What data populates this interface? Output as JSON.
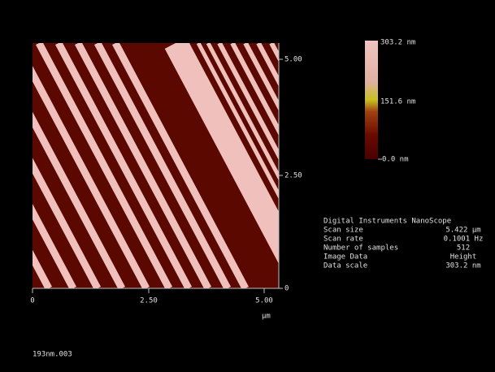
{
  "axes": {
    "y_ticks": [
      "5.00",
      "2.50",
      "0"
    ],
    "x_ticks": [
      "0",
      "2.50",
      "5.00"
    ],
    "unit": "µm"
  },
  "colorbar": {
    "labels": [
      "303.2 nm",
      "151.6 nm",
      "0.0 nm"
    ]
  },
  "info": {
    "title": "Digital Instruments NanoScope",
    "rows": [
      [
        "Scan size",
        "5.422 µm"
      ],
      [
        "Scan rate",
        "0.1001 Hz"
      ],
      [
        "Number of samples",
        "512"
      ],
      [
        "Image Data",
        "Height"
      ],
      [
        "Data scale",
        "303.2 nm"
      ]
    ]
  },
  "filename": "193nm.003"
}
